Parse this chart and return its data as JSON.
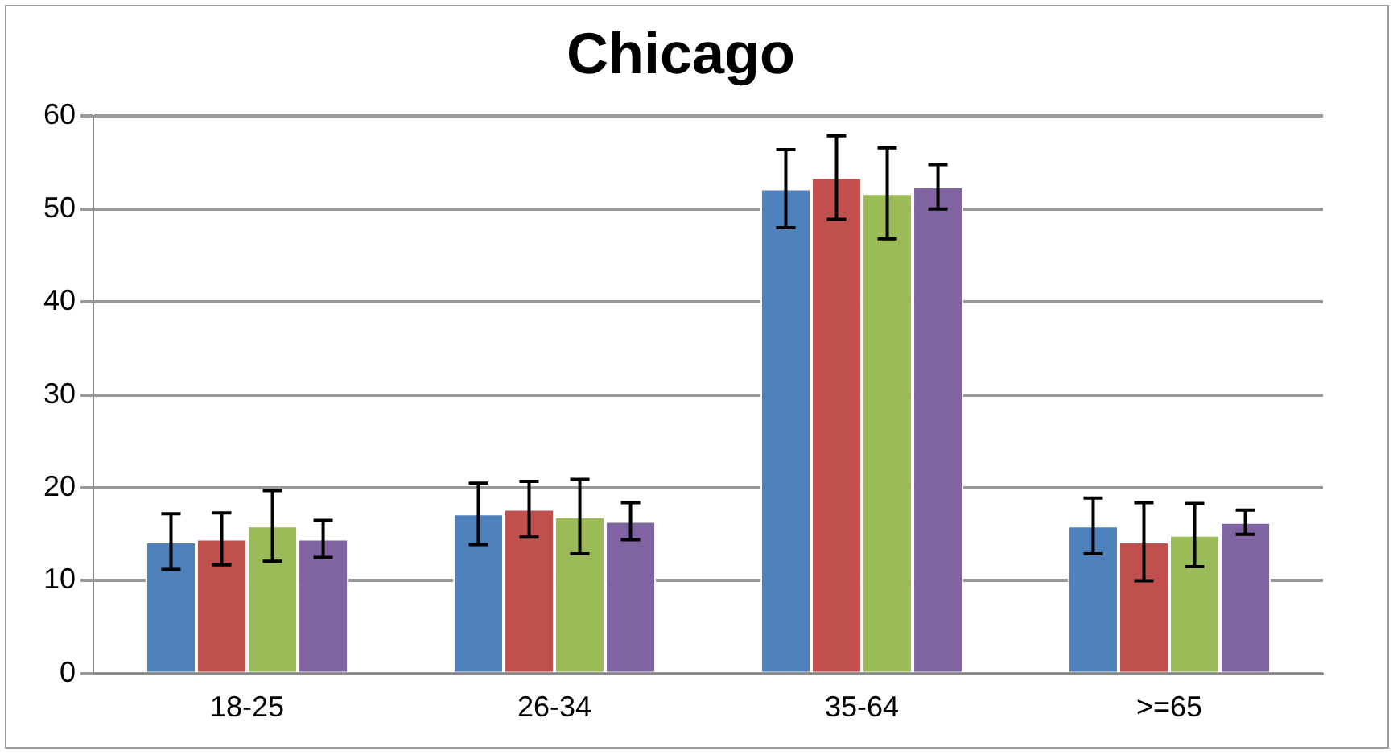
{
  "chart_data": {
    "type": "bar",
    "title": "Chicago",
    "categories": [
      "18-25",
      "26-34",
      "35-64",
      ">=65"
    ],
    "series": [
      {
        "color": "#4f81bd",
        "values": [
          14.2,
          17.2,
          52.2,
          15.9
        ],
        "errors": [
          3.0,
          3.3,
          4.2,
          3.0
        ]
      },
      {
        "color": "#c0504d",
        "values": [
          14.5,
          17.7,
          53.4,
          14.2
        ],
        "errors": [
          2.8,
          3.0,
          4.5,
          4.2
        ]
      },
      {
        "color": "#9bbb59",
        "values": [
          15.9,
          16.9,
          51.7,
          14.9
        ],
        "errors": [
          3.8,
          4.0,
          4.9,
          3.4
        ]
      },
      {
        "color": "#8064a2",
        "values": [
          14.5,
          16.4,
          52.4,
          16.3
        ],
        "errors": [
          2.0,
          2.0,
          2.4,
          1.3
        ]
      }
    ],
    "ylim": [
      0,
      60
    ],
    "yticks": [
      0,
      10,
      20,
      30,
      40,
      50,
      60
    ],
    "grid": "y",
    "legend": false
  }
}
